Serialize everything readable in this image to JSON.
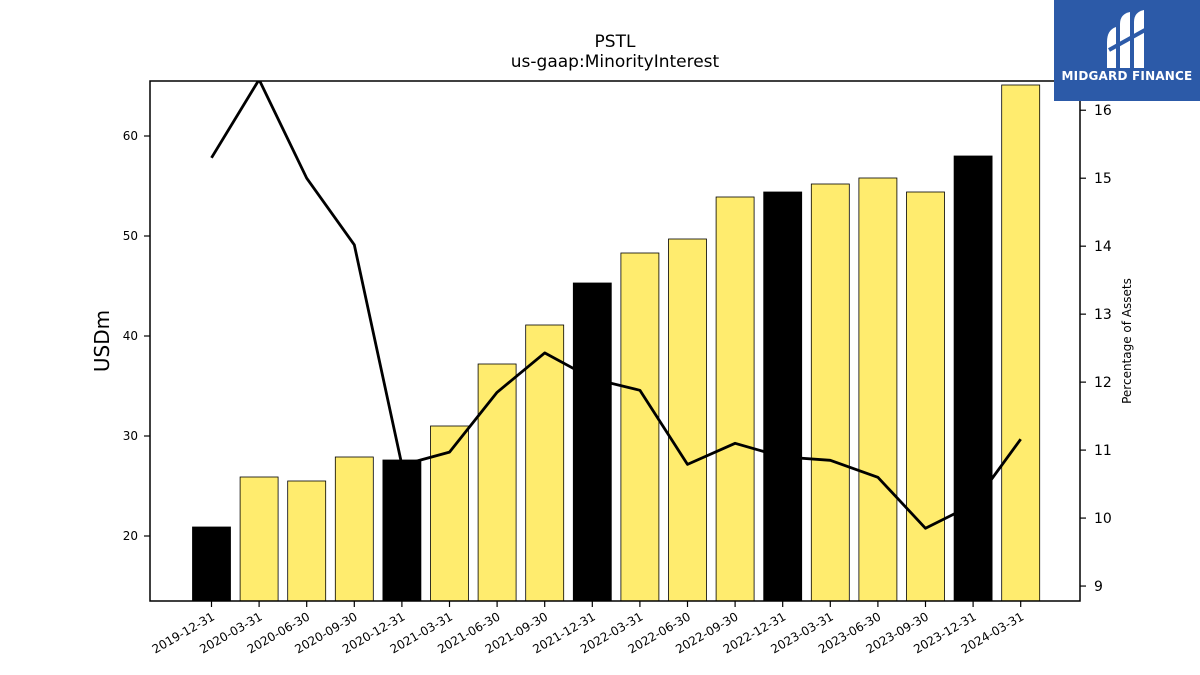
{
  "chart_data": {
    "type": "bar",
    "title": "PSTL",
    "subtitle": "us-gaap:MinorityInterest",
    "ylabel": "USDm",
    "y2label": "Percentage of Assets",
    "categories": [
      "2019-12-31",
      "2020-03-31",
      "2020-06-30",
      "2020-09-30",
      "2020-12-31",
      "2021-03-31",
      "2021-06-30",
      "2021-09-30",
      "2021-12-31",
      "2022-03-31",
      "2022-06-30",
      "2022-09-30",
      "2022-12-31",
      "2023-03-31",
      "2023-06-30",
      "2023-09-30",
      "2023-12-31",
      "2024-03-31"
    ],
    "series": [
      {
        "type": "bar",
        "values": [
          20.9,
          25.9,
          25.5,
          27.9,
          27.6,
          31.0,
          37.2,
          41.1,
          45.3,
          48.3,
          49.7,
          53.9,
          54.4,
          55.2,
          55.8,
          54.4,
          58.0,
          65.1
        ],
        "highlight": [
          true,
          false,
          false,
          false,
          true,
          false,
          false,
          false,
          true,
          false,
          false,
          false,
          true,
          false,
          false,
          false,
          true,
          false
        ],
        "color": "#ffec6e",
        "highlight_color": "#000000"
      },
      {
        "type": "line",
        "axis": "right",
        "values": [
          15.3,
          16.45,
          15.0,
          14.02,
          10.78,
          10.97,
          11.85,
          12.43,
          12.05,
          11.88,
          10.79,
          11.1,
          10.9,
          10.85,
          10.6,
          9.85,
          10.2,
          11.16
        ],
        "color": "#000000"
      }
    ],
    "ylim": [
      13.5,
      65.5
    ],
    "y2lim": [
      8.78,
      16.43
    ],
    "yticks": [
      20,
      30,
      40,
      50,
      60
    ],
    "y2ticks": [
      9,
      10,
      11,
      12,
      13,
      14,
      15,
      16
    ]
  },
  "logo": {
    "text": "MIDGARD FINANCE"
  }
}
